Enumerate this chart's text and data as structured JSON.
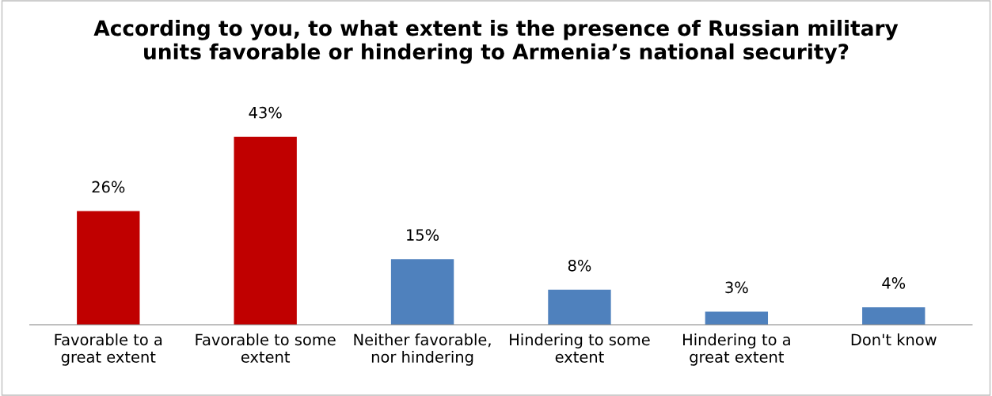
{
  "chart_data": {
    "type": "bar",
    "title": "According to you, to what extent is the presence of Russian military\nunits favorable or hindering to Armenia’s national security?",
    "categories": [
      "Favorable to a\ngreat extent",
      "Favorable to some\nextent",
      "Neither favorable,\nnor hindering",
      "Hindering to some\nextent",
      "Hindering to a\ngreat extent",
      "Don't know"
    ],
    "values": [
      26,
      43,
      15,
      8,
      3,
      4
    ],
    "colors": [
      "#c00000",
      "#c00000",
      "#4f81bd",
      "#4f81bd",
      "#4f81bd",
      "#4f81bd"
    ],
    "value_labels": [
      "26%",
      "43%",
      "15%",
      "8%",
      "3%",
      "4%"
    ],
    "grid": false,
    "legend": false
  }
}
